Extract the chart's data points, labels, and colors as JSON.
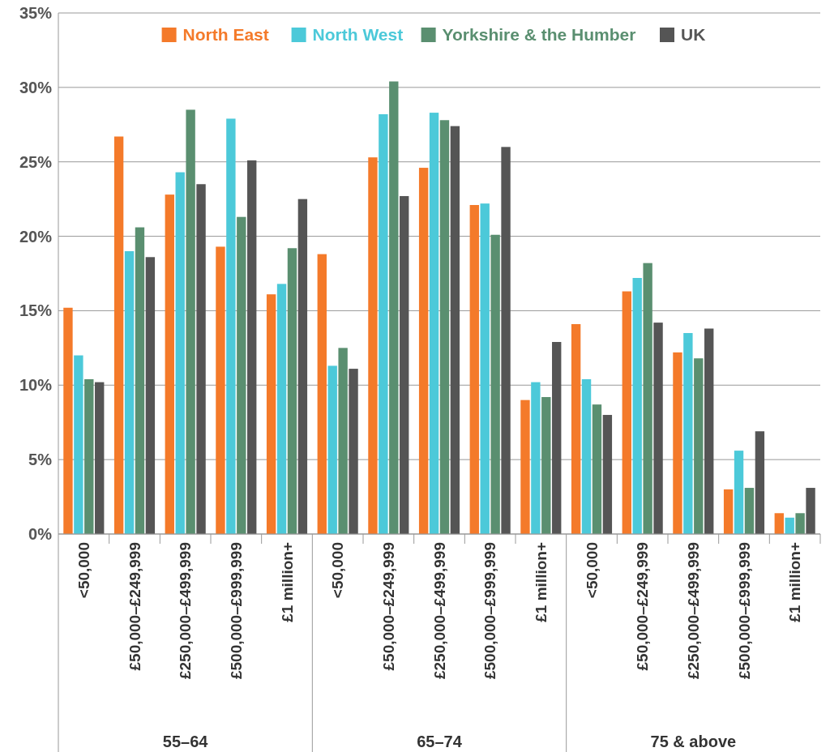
{
  "chart_data": {
    "type": "bar",
    "categories": [
      "<50,000",
      "£50,000–£249,999",
      "£250,000–£499,999",
      "£500,000–£999,999",
      "£1 million+",
      "<50,000",
      "£50,000–£249,999",
      "£250,000–£499,999",
      "£500,000–£999,999",
      "£1 million+",
      "<50,000",
      "£50,000–£249,999",
      "£250,000–£499,999",
      "£500,000–£999,999",
      "£1 million+"
    ],
    "series": [
      {
        "name": "North East",
        "color": "#f47a2a",
        "values": [
          15.2,
          26.7,
          22.8,
          19.3,
          16.1,
          18.8,
          25.3,
          24.6,
          22.1,
          9.0,
          14.1,
          16.3,
          12.2,
          3.0,
          1.4
        ]
      },
      {
        "name": "North West",
        "color": "#4cc9d9",
        "values": [
          12.0,
          19.0,
          24.3,
          27.9,
          16.8,
          11.3,
          28.2,
          28.3,
          22.2,
          10.2,
          10.4,
          17.2,
          13.5,
          5.6,
          1.1
        ]
      },
      {
        "name": "Yorkshire & the Humber",
        "color": "#5a8f70",
        "values": [
          10.4,
          20.6,
          28.5,
          21.3,
          19.2,
          12.5,
          30.4,
          27.8,
          20.1,
          9.2,
          8.7,
          18.2,
          11.8,
          3.1,
          1.4
        ]
      },
      {
        "name": "UK",
        "color": "#555555",
        "values": [
          10.2,
          18.6,
          23.5,
          25.1,
          22.5,
          11.1,
          22.7,
          27.4,
          26.0,
          12.9,
          8.0,
          14.2,
          13.8,
          6.9,
          3.1
        ]
      }
    ],
    "annotations": [
      "55–64",
      "65–74",
      "75 & above"
    ],
    "ylim": [
      0,
      35
    ],
    "yticks": [
      {
        "value": 0,
        "label": "0%"
      },
      {
        "value": 5,
        "label": "5%"
      },
      {
        "value": 10,
        "label": "10%"
      },
      {
        "value": 15,
        "label": "15%"
      },
      {
        "value": 20,
        "label": "20%"
      },
      {
        "value": 25,
        "label": "25%"
      },
      {
        "value": 30,
        "label": "30%"
      },
      {
        "value": 35,
        "label": "35%"
      }
    ],
    "grid": "y",
    "legend": "top"
  }
}
